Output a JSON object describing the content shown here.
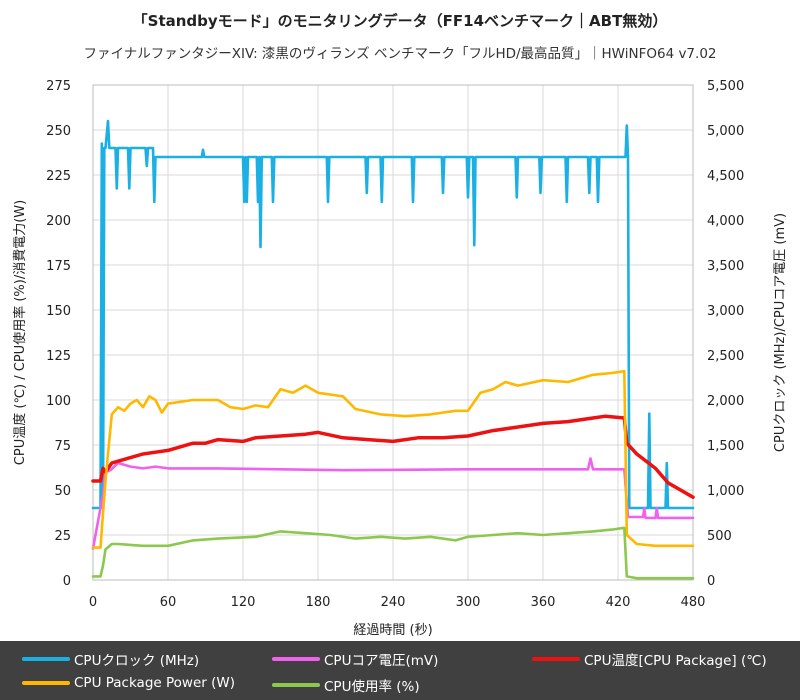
{
  "title": "「Standbyモード」のモニタリングデータ（FF14ベンチマーク｜ABT無効）",
  "subtitle": "ファイナルファンタジーXIV: 漆黒のヴィランズ ベンチマーク「フルHD/最高品質」｜HWiNFO64 v7.02",
  "colors": {
    "clock": "#1ab0e4",
    "voltage": "#ee62ee",
    "temp": "#ee1111",
    "power": "#ffb800",
    "usage": "#8dc84e",
    "grid": "#d9d9d9",
    "legend_bg": "#404040"
  },
  "legend": {
    "clock": "CPUクロック (MHz)",
    "voltage": "CPUコア電圧(mV)",
    "temp": "CPU温度[CPU Package] (℃)",
    "power": "CPU Package Power (W)",
    "usage": "CPU使用率 (%)"
  },
  "chart_data": {
    "type": "line",
    "xlabel": "経過時間 (秒)",
    "ylabel_left": "CPU温度 (℃) / CPU使用率 (%)/消費電力(W)",
    "ylabel_right": "CPUクロック (MHz)/CPUコア電圧 (mV)",
    "xlim": [
      0,
      480
    ],
    "ylim_left": [
      0,
      275
    ],
    "ylim_right": [
      0,
      5500
    ],
    "x_ticks": [
      "0",
      "60",
      "120",
      "180",
      "240",
      "300",
      "360",
      "420",
      "480"
    ],
    "y_left_ticks": [
      "0",
      "25",
      "50",
      "75",
      "100",
      "125",
      "150",
      "175",
      "200",
      "225",
      "250",
      "275"
    ],
    "y_right_ticks": [
      "0",
      "500",
      "1,000",
      "1,500",
      "2,000",
      "2,500",
      "3,000",
      "3,500",
      "4,000",
      "4,500",
      "5,000",
      "5,500"
    ],
    "grid": true,
    "series": [
      {
        "key": "clock",
        "name": "CPUクロック (MHz)",
        "axis": "right",
        "points": [
          [
            0,
            800
          ],
          [
            6,
            800
          ],
          [
            7,
            4850
          ],
          [
            8,
            800
          ],
          [
            9,
            4800
          ],
          [
            10,
            4800
          ],
          [
            12,
            5100
          ],
          [
            13,
            4800
          ],
          [
            18,
            4800
          ],
          [
            19,
            4350
          ],
          [
            20,
            4800
          ],
          [
            28,
            4800
          ],
          [
            29,
            4350
          ],
          [
            30,
            4800
          ],
          [
            42,
            4800
          ],
          [
            43,
            4600
          ],
          [
            44,
            4800
          ],
          [
            48,
            4800
          ],
          [
            49,
            4200
          ],
          [
            50,
            4700
          ],
          [
            87,
            4700
          ],
          [
            88,
            4780
          ],
          [
            89,
            4700
          ],
          [
            120,
            4700
          ],
          [
            121,
            4200
          ],
          [
            122,
            4700
          ],
          [
            123,
            4200
          ],
          [
            124,
            4700
          ],
          [
            131,
            4700
          ],
          [
            132,
            4200
          ],
          [
            133,
            4700
          ],
          [
            134,
            3700
          ],
          [
            135,
            4700
          ],
          [
            143,
            4700
          ],
          [
            144,
            4200
          ],
          [
            145,
            4700
          ],
          [
            187,
            4700
          ],
          [
            188,
            4200
          ],
          [
            189,
            4700
          ],
          [
            218,
            4700
          ],
          [
            219,
            4300
          ],
          [
            220,
            4700
          ],
          [
            230,
            4700
          ],
          [
            231,
            4200
          ],
          [
            232,
            4700
          ],
          [
            255,
            4700
          ],
          [
            256,
            4200
          ],
          [
            257,
            4700
          ],
          [
            279,
            4700
          ],
          [
            280,
            4300
          ],
          [
            281,
            4700
          ],
          [
            299,
            4700
          ],
          [
            300,
            4250
          ],
          [
            301,
            4700
          ],
          [
            304,
            4700
          ],
          [
            305,
            3720
          ],
          [
            306,
            4700
          ],
          [
            338,
            4700
          ],
          [
            339,
            4250
          ],
          [
            340,
            4700
          ],
          [
            357,
            4700
          ],
          [
            358,
            4300
          ],
          [
            359,
            4700
          ],
          [
            378,
            4700
          ],
          [
            379,
            4200
          ],
          [
            380,
            4700
          ],
          [
            396,
            4700
          ],
          [
            397,
            4300
          ],
          [
            398,
            4700
          ],
          [
            403,
            4700
          ],
          [
            404,
            4200
          ],
          [
            405,
            4700
          ],
          [
            426,
            4700
          ],
          [
            427,
            5050
          ],
          [
            428,
            4700
          ],
          [
            429,
            800
          ],
          [
            444,
            800
          ],
          [
            445,
            1850
          ],
          [
            446,
            800
          ],
          [
            458,
            800
          ],
          [
            459,
            1300
          ],
          [
            460,
            800
          ],
          [
            480,
            800
          ]
        ]
      },
      {
        "key": "voltage",
        "name": "CPUコア電圧(mV)",
        "axis": "right",
        "points": [
          [
            0,
            350
          ],
          [
            8,
            950
          ],
          [
            10,
            1200
          ],
          [
            14,
            1220
          ],
          [
            20,
            1300
          ],
          [
            30,
            1260
          ],
          [
            40,
            1240
          ],
          [
            50,
            1260
          ],
          [
            60,
            1240
          ],
          [
            100,
            1240
          ],
          [
            200,
            1220
          ],
          [
            300,
            1230
          ],
          [
            396,
            1230
          ],
          [
            398,
            1350
          ],
          [
            400,
            1230
          ],
          [
            425,
            1230
          ],
          [
            428,
            700
          ],
          [
            440,
            700
          ],
          [
            441,
            800
          ],
          [
            442,
            690
          ],
          [
            450,
            690
          ],
          [
            451,
            800
          ],
          [
            452,
            690
          ],
          [
            480,
            690
          ]
        ]
      },
      {
        "key": "temp",
        "name": "CPU温度[CPU Package] (℃)",
        "axis": "left",
        "points": [
          [
            0,
            55
          ],
          [
            6,
            55
          ],
          [
            8,
            62
          ],
          [
            10,
            60
          ],
          [
            15,
            65
          ],
          [
            20,
            66
          ],
          [
            30,
            68
          ],
          [
            40,
            70
          ],
          [
            50,
            71
          ],
          [
            60,
            72
          ],
          [
            70,
            74
          ],
          [
            80,
            76
          ],
          [
            90,
            76
          ],
          [
            100,
            78
          ],
          [
            120,
            77
          ],
          [
            130,
            79
          ],
          [
            150,
            80
          ],
          [
            170,
            81
          ],
          [
            180,
            82
          ],
          [
            200,
            79
          ],
          [
            220,
            78
          ],
          [
            240,
            77
          ],
          [
            260,
            79
          ],
          [
            280,
            79
          ],
          [
            300,
            80
          ],
          [
            320,
            83
          ],
          [
            340,
            85
          ],
          [
            360,
            87
          ],
          [
            380,
            88
          ],
          [
            400,
            90
          ],
          [
            410,
            91
          ],
          [
            425,
            90
          ],
          [
            427,
            76
          ],
          [
            435,
            70
          ],
          [
            450,
            62
          ],
          [
            460,
            54
          ],
          [
            470,
            50
          ],
          [
            480,
            46
          ]
        ]
      },
      {
        "key": "power",
        "name": "CPU Package Power (W)",
        "axis": "left",
        "points": [
          [
            0,
            18
          ],
          [
            6,
            18
          ],
          [
            8,
            37
          ],
          [
            10,
            55
          ],
          [
            12,
            70
          ],
          [
            15,
            92
          ],
          [
            20,
            96
          ],
          [
            25,
            94
          ],
          [
            30,
            98
          ],
          [
            35,
            100
          ],
          [
            40,
            96
          ],
          [
            45,
            102
          ],
          [
            50,
            100
          ],
          [
            55,
            93
          ],
          [
            60,
            98
          ],
          [
            80,
            100
          ],
          [
            100,
            100
          ],
          [
            110,
            96
          ],
          [
            120,
            95
          ],
          [
            130,
            97
          ],
          [
            140,
            96
          ],
          [
            150,
            106
          ],
          [
            160,
            104
          ],
          [
            170,
            108
          ],
          [
            180,
            104
          ],
          [
            200,
            102
          ],
          [
            210,
            95
          ],
          [
            230,
            92
          ],
          [
            250,
            91
          ],
          [
            270,
            92
          ],
          [
            290,
            94
          ],
          [
            300,
            94
          ],
          [
            310,
            104
          ],
          [
            320,
            106
          ],
          [
            330,
            110
          ],
          [
            340,
            108
          ],
          [
            360,
            111
          ],
          [
            380,
            110
          ],
          [
            400,
            114
          ],
          [
            415,
            115
          ],
          [
            425,
            116
          ],
          [
            427,
            25
          ],
          [
            435,
            20
          ],
          [
            450,
            19
          ],
          [
            480,
            19
          ]
        ]
      },
      {
        "key": "usage",
        "name": "CPU使用率 (%)",
        "axis": "left",
        "points": [
          [
            0,
            2
          ],
          [
            6,
            2
          ],
          [
            8,
            8
          ],
          [
            10,
            17
          ],
          [
            15,
            20
          ],
          [
            20,
            20
          ],
          [
            40,
            19
          ],
          [
            60,
            19
          ],
          [
            80,
            22
          ],
          [
            100,
            23
          ],
          [
            130,
            24
          ],
          [
            150,
            27
          ],
          [
            170,
            26
          ],
          [
            190,
            25
          ],
          [
            210,
            23
          ],
          [
            230,
            24
          ],
          [
            250,
            23
          ],
          [
            270,
            24
          ],
          [
            290,
            22
          ],
          [
            300,
            24
          ],
          [
            320,
            25
          ],
          [
            340,
            26
          ],
          [
            360,
            25
          ],
          [
            380,
            26
          ],
          [
            400,
            27
          ],
          [
            415,
            28
          ],
          [
            425,
            29
          ],
          [
            427,
            2
          ],
          [
            435,
            1
          ],
          [
            480,
            1
          ]
        ]
      }
    ]
  }
}
